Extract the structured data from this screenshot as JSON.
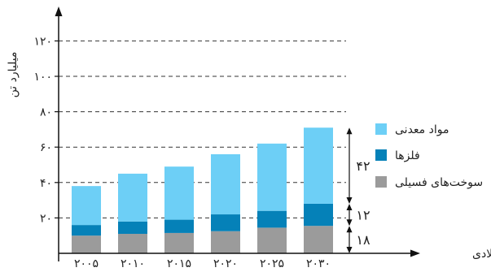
{
  "chart_data": {
    "type": "bar",
    "stacked": true,
    "categories": [
      "۲۰۰۵",
      "۲۰۱۰",
      "۲۰۱۵",
      "۲۰۲۰",
      "۲۰۲۵",
      "۲۰۳۰"
    ],
    "series": [
      {
        "name": "سوخت‌های فسیلی",
        "color": "#9b9b9b",
        "values": [
          10,
          11,
          11.5,
          12.5,
          14.5,
          15.5
        ]
      },
      {
        "name": "فلزها",
        "color": "#0581b8",
        "values": [
          6,
          7,
          7.5,
          9.5,
          9.5,
          12.5
        ]
      },
      {
        "name": "مواد معدنی",
        "color": "#6dcff6",
        "values": [
          22,
          27,
          30,
          34,
          38,
          43
        ]
      }
    ],
    "ylim": [
      0,
      130
    ],
    "yticks": [
      20,
      40,
      60,
      80,
      100,
      120
    ],
    "ytick_labels": [
      "۲۰",
      "۴۰",
      "۶۰",
      "۸۰",
      "۱۰۰",
      "۱۲۰"
    ],
    "ylabel": "میلیارد تن",
    "xlabel": "سال میلادی",
    "grid": "dashed horizontal",
    "legend_position": "right",
    "brace_labels": [
      "۴۲",
      "۱۲",
      "۱۸"
    ]
  }
}
